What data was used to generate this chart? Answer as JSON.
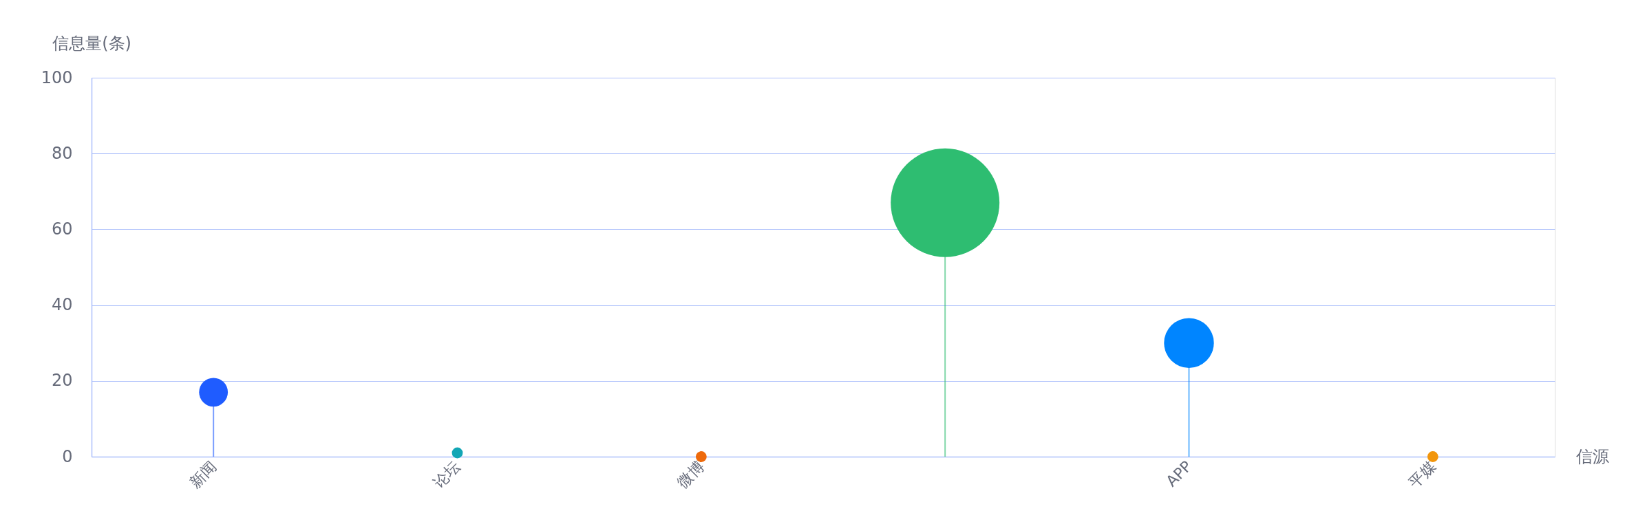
{
  "chart_data": {
    "type": "lollipop",
    "xlabel": "信源",
    "ylabel": "信息量(条)",
    "categories": [
      "新闻",
      "论坛",
      "微博",
      null,
      "APP",
      "平媒"
    ],
    "values": [
      17,
      1,
      0,
      67,
      30,
      0
    ],
    "sizes": [
      0.07,
      0.01,
      0.01,
      1,
      0.21,
      0.01
    ],
    "colors": [
      "#1f5cff",
      "#12a6b5",
      "#ee6a0c",
      "#2ebd71",
      "#0085ff",
      "#f2960c"
    ],
    "ylim": [
      0,
      100
    ],
    "yticks": [
      0,
      20,
      40,
      60,
      80,
      100
    ],
    "grid": "y",
    "marker": "circle"
  }
}
